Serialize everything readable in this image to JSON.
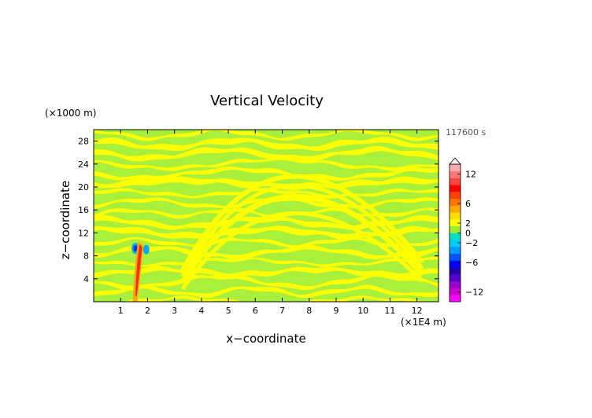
{
  "chart_data": {
    "type": "heatmap",
    "title": "Vertical Velocity",
    "xlabel": "x−coordinate",
    "ylabel": "z−coordinate",
    "x_unit": "(×1E4 m)",
    "y_unit": "(×1000 m)",
    "time_label": "117600 s",
    "xlim": [
      0,
      12.8
    ],
    "ylim": [
      0,
      30
    ],
    "x_ticks": [
      1,
      2,
      3,
      4,
      5,
      6,
      7,
      8,
      9,
      10,
      11,
      12
    ],
    "y_ticks": [
      4,
      8,
      12,
      16,
      20,
      24,
      28
    ],
    "y_tick_labels": [
      "4",
      "8",
      "12",
      "16",
      "20",
      "24",
      "28"
    ],
    "colorbar": {
      "range": [
        -14,
        14
      ],
      "tick_values": [
        12,
        6,
        2,
        0,
        -2,
        -6,
        -12
      ],
      "tick_labels": [
        "12",
        "6",
        "2",
        "0",
        "−2",
        "−6",
        "−12"
      ],
      "colors": [
        "#ff00ff",
        "#cc00cc",
        "#9900cc",
        "#5500cc",
        "#2200aa",
        "#0000ff",
        "#0055ff",
        "#0099ff",
        "#00ccff",
        "#00e0c0",
        "#99ee33",
        "#ffff00",
        "#ffdd00",
        "#ffaa00",
        "#ff7700",
        "#ff4400",
        "#ff0000",
        "#ff4444",
        "#ff7777",
        "#ffaaaa"
      ]
    },
    "background_color": "#a8f03c",
    "band_color": "#ffff00",
    "plume": {
      "x": [
        1.45,
        1.85
      ],
      "z": [
        0,
        11
      ],
      "core_color": "#ff2a00"
    }
  }
}
